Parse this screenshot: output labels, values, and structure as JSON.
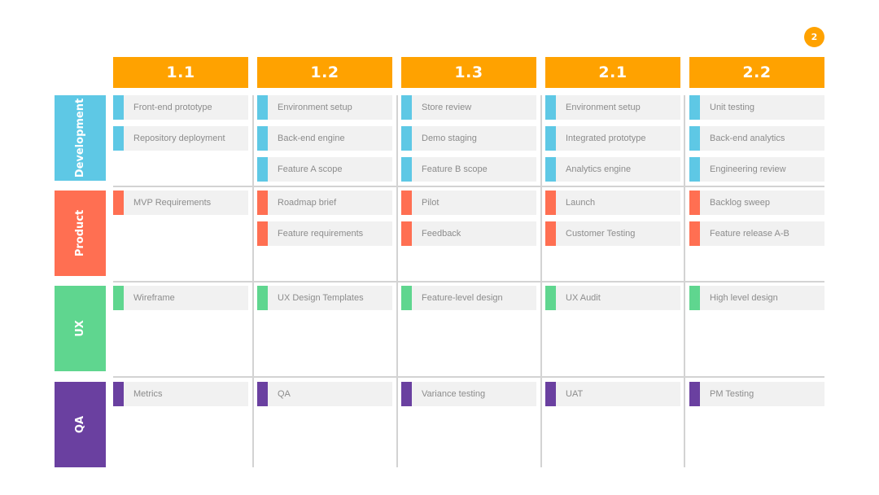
{
  "page_number": "2",
  "colors": {
    "header": "#ffa200",
    "badge": "#ffa200",
    "development": "#5ec8e5",
    "product": "#ff6f52",
    "ux": "#5fd68f",
    "qa": "#6a40a0"
  },
  "columns": [
    "1.1",
    "1.2",
    "1.3",
    "2.1",
    "2.2"
  ],
  "lanes": [
    {
      "key": "development",
      "label": "Development",
      "rows": [
        [
          "Front-end prototype",
          "Environment setup",
          "Store review",
          "Environment setup",
          "Unit testing"
        ],
        [
          "Repository deployment",
          "Back-end engine",
          "Demo staging",
          "Integrated prototype",
          "Back-end analytics"
        ],
        [
          null,
          "Feature A scope",
          "Feature B scope",
          "Analytics engine",
          "Engineering review"
        ]
      ]
    },
    {
      "key": "product",
      "label": "Product",
      "rows": [
        [
          "MVP Requirements",
          "Roadmap brief",
          "Pilot",
          "Launch",
          "Backlog sweep"
        ],
        [
          null,
          "Feature requirements",
          "Feedback",
          "Customer Testing",
          "Feature release A-B"
        ]
      ]
    },
    {
      "key": "ux",
      "label": "UX",
      "rows": [
        [
          "Wireframe",
          "UX Design Templates",
          "Feature-level design",
          "UX Audit",
          "High level design"
        ]
      ]
    },
    {
      "key": "qa",
      "label": "QA",
      "rows": [
        [
          "Metrics",
          "QA",
          "Variance testing",
          "UAT",
          "PM Testing"
        ]
      ]
    }
  ]
}
